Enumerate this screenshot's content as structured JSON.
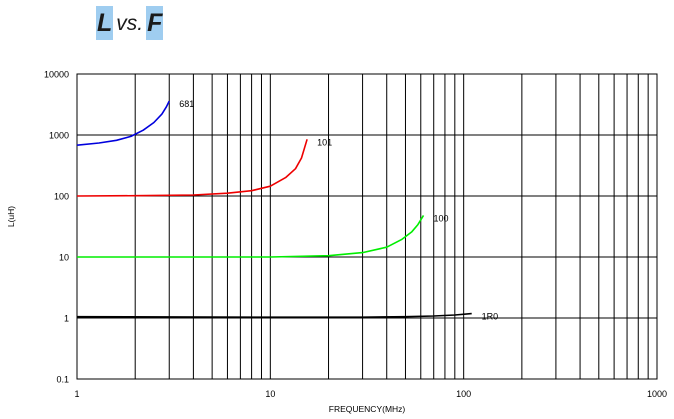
{
  "title": {
    "left": "L",
    "middle": "vs.",
    "right": "F"
  },
  "chart_data": {
    "type": "line",
    "title": "L vs. F",
    "xlabel": "FREQUENCY(MHz)",
    "ylabel": "L(uH)",
    "xscale": "log",
    "yscale": "log",
    "xlim": [
      1,
      1000
    ],
    "ylim": [
      0.1,
      10000
    ],
    "grid": true,
    "x_ticks": [
      "1",
      "10",
      "100",
      "1000"
    ],
    "y_ticks": [
      "0.1",
      "1",
      "10",
      "100",
      "1000",
      "10000"
    ],
    "series": [
      {
        "name": "681",
        "color": "#0000dd",
        "x": [
          1,
          1.3,
          1.6,
          1.9,
          2.2,
          2.5,
          2.75,
          2.9,
          3.0
        ],
        "y": [
          680,
          740,
          820,
          950,
          1200,
          1600,
          2200,
          2900,
          3600
        ]
      },
      {
        "name": "101",
        "color": "#ee0000",
        "x": [
          1,
          2,
          4,
          6,
          8,
          10,
          12,
          13.5,
          14.5,
          15.5
        ],
        "y": [
          100,
          101,
          104,
          111,
          122,
          145,
          200,
          280,
          420,
          850
        ]
      },
      {
        "name": "100",
        "color": "#00ee00",
        "x": [
          1,
          3,
          10,
          20,
          30,
          40,
          48,
          54,
          58,
          62
        ],
        "y": [
          10.0,
          10.0,
          10.0,
          10.5,
          11.8,
          14.5,
          19.5,
          26,
          34,
          48
        ]
      },
      {
        "name": "1R0",
        "color": "#000000",
        "x": [
          1,
          10,
          30,
          50,
          70,
          90,
          110
        ],
        "y": [
          1.05,
          1.03,
          1.03,
          1.05,
          1.08,
          1.12,
          1.18
        ]
      }
    ]
  }
}
